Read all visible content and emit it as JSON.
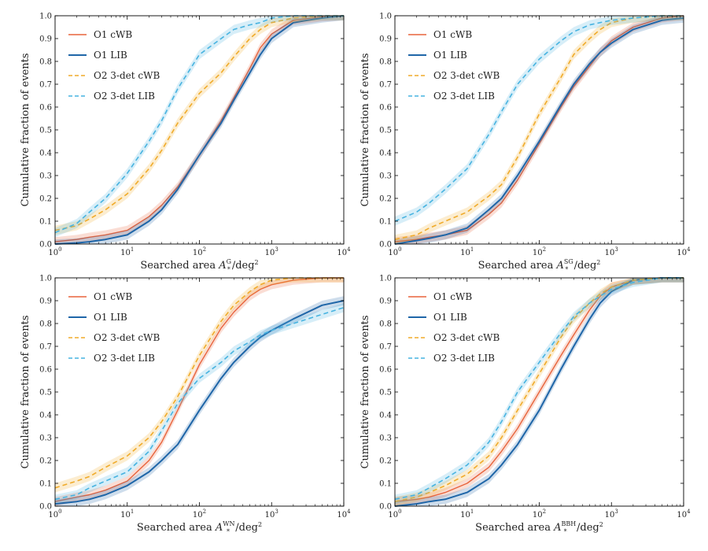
{
  "colors": {
    "o1_cwb": "#e8643c",
    "o1_lib": "#1f66a8",
    "o2_cwb": "#f0ab2a",
    "o2_lib": "#47b3e0"
  },
  "chart_data": [
    {
      "type": "line",
      "panel": "top-left",
      "xscale": "log",
      "xlim": [
        1,
        10000
      ],
      "ylim": [
        0,
        1
      ],
      "xticks": [
        "10^0",
        "10^1",
        "10^2",
        "10^3",
        "10^4"
      ],
      "yticks": [
        "0.0",
        "0.1",
        "0.2",
        "0.3",
        "0.4",
        "0.5",
        "0.6",
        "0.7",
        "0.8",
        "0.9",
        "1.0"
      ],
      "xlabel": {
        "prefix": "Searched area ",
        "var": "A",
        "sub": "*",
        "sup": "G",
        "suffix": "/deg",
        "exp": "2"
      },
      "ylabel": "Cumulative fraction of events",
      "legend_position": "upper-left",
      "series": [
        {
          "name": "O1 cWB",
          "color_key": "o1_cwb",
          "dashed": false,
          "x": [
            1,
            2,
            3,
            5,
            10,
            20,
            30,
            50,
            100,
            200,
            300,
            500,
            700,
            1000,
            2000,
            5000,
            10000
          ],
          "y": [
            0.01,
            0.02,
            0.03,
            0.04,
            0.06,
            0.12,
            0.17,
            0.25,
            0.39,
            0.54,
            0.64,
            0.77,
            0.86,
            0.92,
            0.98,
            0.995,
            1.0
          ]
        },
        {
          "name": "O1 LIB",
          "color_key": "o1_lib",
          "dashed": false,
          "x": [
            1,
            2,
            3,
            5,
            10,
            20,
            30,
            50,
            100,
            200,
            300,
            500,
            700,
            1000,
            2000,
            5000,
            10000
          ],
          "y": [
            0.0,
            0.005,
            0.01,
            0.02,
            0.04,
            0.1,
            0.15,
            0.24,
            0.39,
            0.53,
            0.63,
            0.75,
            0.83,
            0.9,
            0.97,
            0.99,
            1.0
          ]
        },
        {
          "name": "O2 3-det cWB",
          "color_key": "o2_cwb",
          "dashed": true,
          "x": [
            1,
            2,
            3,
            5,
            10,
            20,
            30,
            50,
            100,
            200,
            300,
            500,
            700,
            1000,
            2000,
            5000,
            10000
          ],
          "y": [
            0.06,
            0.08,
            0.11,
            0.15,
            0.22,
            0.33,
            0.41,
            0.53,
            0.66,
            0.75,
            0.82,
            0.9,
            0.94,
            0.97,
            0.99,
            1.0,
            1.0
          ]
        },
        {
          "name": "O2 3-det LIB",
          "color_key": "o2_lib",
          "dashed": true,
          "x": [
            1,
            2,
            3,
            5,
            10,
            20,
            30,
            50,
            100,
            200,
            300,
            500,
            700,
            1000,
            2000,
            5000,
            10000
          ],
          "y": [
            0.05,
            0.09,
            0.14,
            0.2,
            0.31,
            0.45,
            0.54,
            0.68,
            0.83,
            0.9,
            0.94,
            0.96,
            0.97,
            0.99,
            1.0,
            1.0,
            1.0
          ]
        }
      ]
    },
    {
      "type": "line",
      "panel": "top-right",
      "xscale": "log",
      "xlim": [
        1,
        10000
      ],
      "ylim": [
        0,
        1
      ],
      "xticks": [
        "10^0",
        "10^1",
        "10^2",
        "10^3",
        "10^4"
      ],
      "yticks": [
        "0.0",
        "0.1",
        "0.2",
        "0.3",
        "0.4",
        "0.5",
        "0.6",
        "0.7",
        "0.8",
        "0.9",
        "1.0"
      ],
      "xlabel": {
        "prefix": "Searched area ",
        "var": "A",
        "sub": "*",
        "sup": "SG",
        "suffix": "/deg",
        "exp": "2"
      },
      "ylabel": "Cumulative fraction of events",
      "legend_position": "upper-left",
      "series": [
        {
          "name": "O1 cWB",
          "color_key": "o1_cwb",
          "dashed": false,
          "x": [
            1,
            2,
            3,
            5,
            10,
            20,
            30,
            50,
            100,
            200,
            300,
            500,
            700,
            1000,
            2000,
            5000,
            10000
          ],
          "y": [
            0.01,
            0.02,
            0.03,
            0.04,
            0.06,
            0.13,
            0.18,
            0.28,
            0.44,
            0.6,
            0.69,
            0.78,
            0.84,
            0.89,
            0.95,
            0.99,
            1.0
          ]
        },
        {
          "name": "O1 LIB",
          "color_key": "o1_lib",
          "dashed": false,
          "x": [
            1,
            2,
            3,
            5,
            10,
            20,
            30,
            50,
            100,
            200,
            300,
            500,
            700,
            1000,
            2000,
            5000,
            10000
          ],
          "y": [
            0.0,
            0.015,
            0.025,
            0.04,
            0.07,
            0.15,
            0.2,
            0.3,
            0.45,
            0.61,
            0.7,
            0.79,
            0.84,
            0.88,
            0.94,
            0.98,
            0.99
          ]
        },
        {
          "name": "O2 3-det cWB",
          "color_key": "o2_cwb",
          "dashed": true,
          "x": [
            1,
            2,
            3,
            5,
            10,
            20,
            30,
            50,
            100,
            200,
            300,
            500,
            700,
            1000,
            2000,
            5000,
            10000
          ],
          "y": [
            0.02,
            0.04,
            0.07,
            0.1,
            0.14,
            0.21,
            0.26,
            0.38,
            0.57,
            0.73,
            0.83,
            0.9,
            0.94,
            0.97,
            0.99,
            1.0,
            1.0
          ]
        },
        {
          "name": "O2 3-det LIB",
          "color_key": "o2_lib",
          "dashed": true,
          "x": [
            1,
            2,
            3,
            5,
            10,
            20,
            30,
            50,
            100,
            200,
            300,
            500,
            700,
            1000,
            2000,
            5000,
            10000
          ],
          "y": [
            0.1,
            0.14,
            0.18,
            0.24,
            0.33,
            0.48,
            0.58,
            0.7,
            0.81,
            0.89,
            0.93,
            0.96,
            0.97,
            0.98,
            0.99,
            1.0,
            1.0
          ]
        }
      ]
    },
    {
      "type": "line",
      "panel": "bottom-left",
      "xscale": "log",
      "xlim": [
        1,
        10000
      ],
      "ylim": [
        0,
        1
      ],
      "xticks": [
        "10^0",
        "10^1",
        "10^2",
        "10^3",
        "10^4"
      ],
      "yticks": [
        "0.0",
        "0.1",
        "0.2",
        "0.3",
        "0.4",
        "0.5",
        "0.6",
        "0.7",
        "0.8",
        "0.9",
        "1.0"
      ],
      "xlabel": {
        "prefix": "Searched area ",
        "var": "A",
        "sub": "*",
        "sup": "WN",
        "suffix": "/deg",
        "exp": "2"
      },
      "ylabel": "Cumulative fraction of events",
      "legend_position": "upper-left",
      "series": [
        {
          "name": "O1 cWB",
          "color_key": "o1_cwb",
          "dashed": false,
          "x": [
            1,
            2,
            3,
            5,
            10,
            20,
            30,
            50,
            100,
            200,
            300,
            500,
            700,
            1000,
            2000,
            5000,
            10000
          ],
          "y": [
            0.02,
            0.04,
            0.05,
            0.07,
            0.11,
            0.2,
            0.28,
            0.42,
            0.62,
            0.78,
            0.85,
            0.92,
            0.95,
            0.97,
            0.99,
            1.0,
            1.0
          ]
        },
        {
          "name": "O1 LIB",
          "color_key": "o1_lib",
          "dashed": false,
          "x": [
            1,
            2,
            3,
            5,
            10,
            20,
            30,
            50,
            100,
            200,
            300,
            500,
            700,
            1000,
            2000,
            5000,
            10000
          ],
          "y": [
            0.01,
            0.02,
            0.03,
            0.05,
            0.09,
            0.15,
            0.2,
            0.27,
            0.42,
            0.56,
            0.63,
            0.7,
            0.74,
            0.77,
            0.82,
            0.88,
            0.9
          ]
        },
        {
          "name": "O2 3-det cWB",
          "color_key": "o2_cwb",
          "dashed": true,
          "x": [
            1,
            2,
            3,
            5,
            10,
            20,
            30,
            50,
            100,
            200,
            300,
            500,
            700,
            1000,
            2000,
            5000,
            10000
          ],
          "y": [
            0.08,
            0.11,
            0.13,
            0.17,
            0.22,
            0.3,
            0.37,
            0.48,
            0.66,
            0.81,
            0.88,
            0.94,
            0.97,
            0.99,
            1.0,
            1.0,
            1.0
          ]
        },
        {
          "name": "O2 3-det LIB",
          "color_key": "o2_lib",
          "dashed": true,
          "x": [
            1,
            2,
            3,
            5,
            10,
            20,
            30,
            50,
            100,
            200,
            300,
            500,
            700,
            1000,
            2000,
            5000,
            10000
          ],
          "y": [
            0.03,
            0.05,
            0.08,
            0.11,
            0.15,
            0.24,
            0.33,
            0.45,
            0.56,
            0.63,
            0.68,
            0.72,
            0.75,
            0.77,
            0.8,
            0.84,
            0.87
          ]
        }
      ]
    },
    {
      "type": "line",
      "panel": "bottom-right",
      "xscale": "log",
      "xlim": [
        1,
        10000
      ],
      "ylim": [
        0,
        1
      ],
      "xticks": [
        "10^0",
        "10^1",
        "10^2",
        "10^3",
        "10^4"
      ],
      "yticks": [
        "0.0",
        "0.1",
        "0.2",
        "0.3",
        "0.4",
        "0.5",
        "0.6",
        "0.7",
        "0.8",
        "0.9",
        "1.0"
      ],
      "xlabel": {
        "prefix": "Searched area ",
        "var": "A",
        "sub": "*",
        "sup": "BBH",
        "suffix": "/deg",
        "exp": "2"
      },
      "ylabel": "Cumulative fraction of events",
      "legend_position": "upper-left",
      "series": [
        {
          "name": "O1 cWB",
          "color_key": "o1_cwb",
          "dashed": false,
          "x": [
            1,
            2,
            3,
            5,
            10,
            20,
            30,
            50,
            100,
            200,
            300,
            500,
            700,
            1000,
            2000,
            5000,
            10000
          ],
          "y": [
            0.02,
            0.03,
            0.04,
            0.06,
            0.1,
            0.17,
            0.24,
            0.34,
            0.5,
            0.66,
            0.75,
            0.86,
            0.92,
            0.96,
            0.99,
            1.0,
            1.0
          ]
        },
        {
          "name": "O1 LIB",
          "color_key": "o1_lib",
          "dashed": false,
          "x": [
            1,
            2,
            3,
            5,
            10,
            20,
            30,
            50,
            100,
            200,
            300,
            500,
            700,
            1000,
            2000,
            5000,
            10000
          ],
          "y": [
            0.0,
            0.01,
            0.02,
            0.03,
            0.06,
            0.12,
            0.18,
            0.27,
            0.42,
            0.6,
            0.7,
            0.82,
            0.89,
            0.94,
            0.99,
            1.0,
            1.0
          ]
        },
        {
          "name": "O2 3-det cWB",
          "color_key": "o2_cwb",
          "dashed": true,
          "x": [
            1,
            2,
            3,
            5,
            10,
            20,
            30,
            50,
            100,
            200,
            300,
            500,
            700,
            1000,
            2000,
            5000,
            10000
          ],
          "y": [
            0.02,
            0.04,
            0.06,
            0.09,
            0.14,
            0.22,
            0.3,
            0.42,
            0.58,
            0.74,
            0.82,
            0.89,
            0.93,
            0.96,
            0.99,
            1.0,
            1.0
          ]
        },
        {
          "name": "O2 3-det LIB",
          "color_key": "o2_lib",
          "dashed": true,
          "x": [
            1,
            2,
            3,
            5,
            10,
            20,
            30,
            50,
            100,
            200,
            300,
            500,
            700,
            1000,
            2000,
            5000,
            10000
          ],
          "y": [
            0.03,
            0.05,
            0.08,
            0.12,
            0.18,
            0.28,
            0.37,
            0.5,
            0.63,
            0.76,
            0.83,
            0.89,
            0.92,
            0.95,
            0.98,
            1.0,
            1.0
          ]
        }
      ]
    }
  ]
}
